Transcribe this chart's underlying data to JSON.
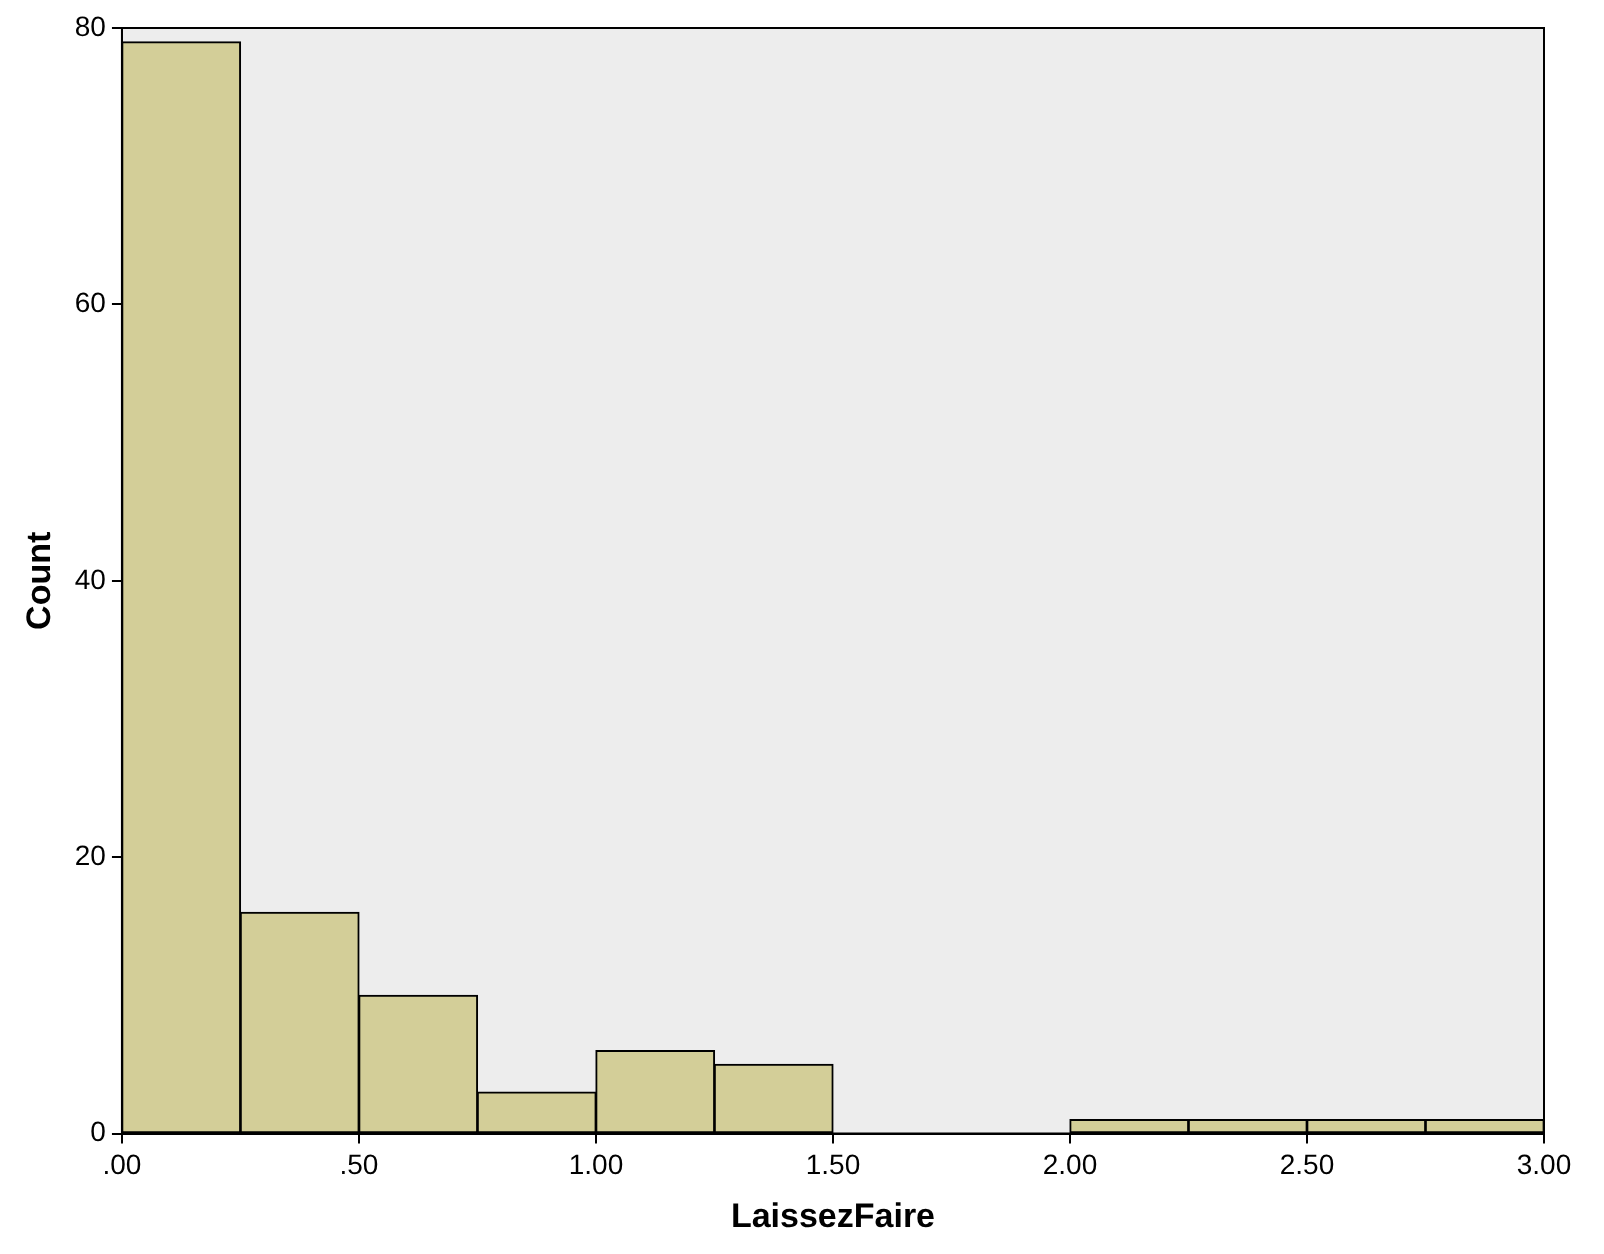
{
  "chart_data": {
    "type": "histogram",
    "xlabel": "LaissezFaire",
    "ylabel": "Count",
    "color": "#d3ce98",
    "bins": [
      0,
      0.25,
      0.5,
      0.75,
      1,
      1.25,
      1.5,
      1.75,
      2,
      2.25,
      2.5,
      2.75,
      3
    ],
    "values": [
      79,
      16,
      10,
      3,
      6,
      5,
      0,
      0,
      1,
      1,
      1,
      1
    ],
    "xlim": [
      0,
      3
    ],
    "xticks": [
      {
        "value": 0,
        "label": ".00"
      },
      {
        "value": 0.5,
        "label": ".50"
      },
      {
        "value": 1,
        "label": "1.00"
      },
      {
        "value": 1.5,
        "label": "1.50"
      },
      {
        "value": 2,
        "label": "2.00"
      },
      {
        "value": 2.5,
        "label": "2.50"
      },
      {
        "value": 3,
        "label": "3.00"
      }
    ],
    "ylim": [
      0,
      80
    ],
    "yticks": [
      0,
      20,
      40,
      60,
      80
    ],
    "grid": false
  }
}
